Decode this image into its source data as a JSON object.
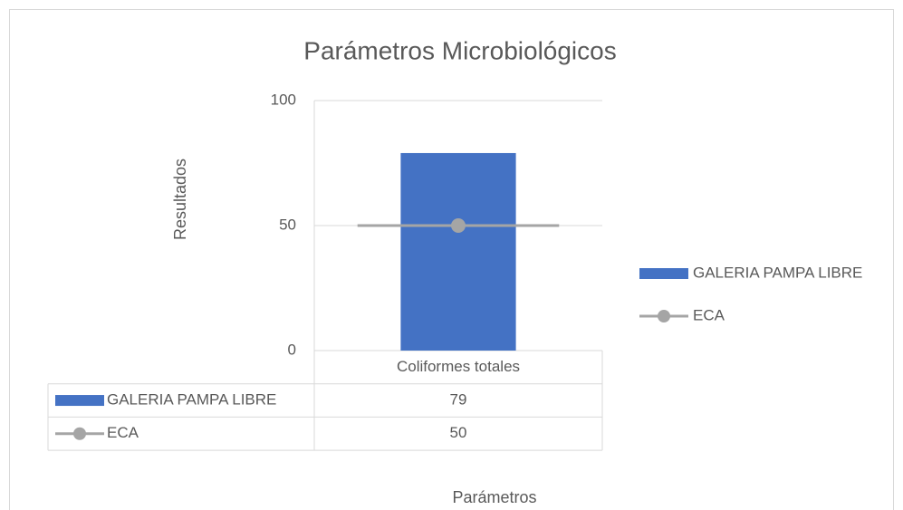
{
  "chart_data": {
    "type": "bar",
    "title": "Parámetros Microbiológicos",
    "x_label": "Parámetros",
    "y_label": "Resultados",
    "categories": [
      "Coliformes totales"
    ],
    "series": [
      {
        "name": "GALERIA PAMPA LIBRE",
        "type": "bar",
        "color": "#4472c4",
        "values": [
          79
        ]
      },
      {
        "name": "ECA",
        "type": "line",
        "color": "#a5a5a5",
        "values": [
          50
        ]
      }
    ],
    "ylim": [
      0,
      100
    ],
    "yticks": [
      0,
      50,
      100
    ],
    "grid": true,
    "legend": "right",
    "data_table": true
  }
}
